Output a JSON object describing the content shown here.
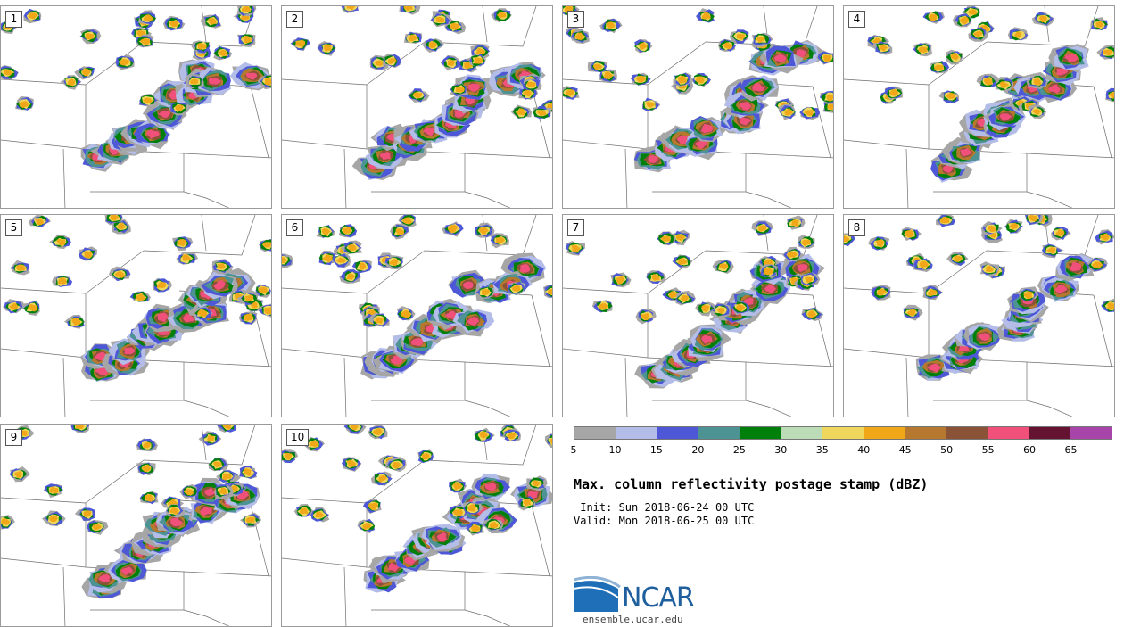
{
  "panels": [
    {
      "label": "1"
    },
    {
      "label": "2"
    },
    {
      "label": "3"
    },
    {
      "label": "4"
    },
    {
      "label": "5"
    },
    {
      "label": "6"
    },
    {
      "label": "7"
    },
    {
      "label": "8"
    },
    {
      "label": "9"
    },
    {
      "label": "10"
    }
  ],
  "colorbar": {
    "colors": [
      "#a6a6a6",
      "#b4bde8",
      "#4e58d6",
      "#4d9393",
      "#00800a",
      "#bcdcb8",
      "#efd75e",
      "#f0a818",
      "#b5782e",
      "#8a5236",
      "#f0507a",
      "#641430",
      "#a845a8"
    ],
    "ticks": [
      "5",
      "10",
      "15",
      "20",
      "25",
      "30",
      "35",
      "40",
      "45",
      "50",
      "55",
      "60",
      "65"
    ]
  },
  "title": "Max. column reflectivity postage stamp (dBZ)",
  "init": " Init: Sun 2018-06-24 00 UTC",
  "valid": "Valid: Mon 2018-06-25 00 UTC",
  "logo": {
    "text": "NCAR",
    "url": "ensemble.ucar.edu"
  },
  "palette": {
    "border": "#6e6e6e",
    "logo_blue": "#1f5f9e"
  }
}
